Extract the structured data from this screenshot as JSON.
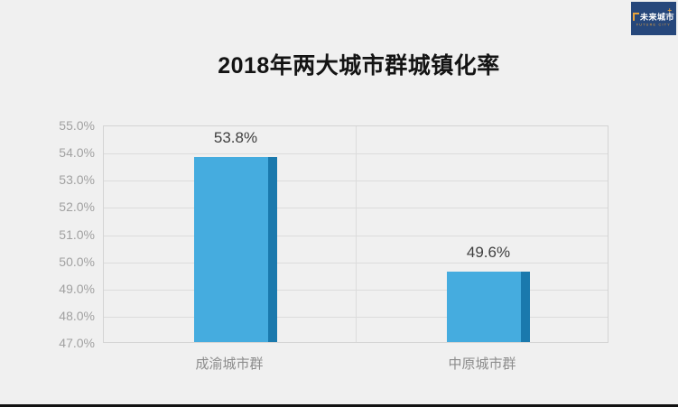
{
  "page": {
    "background": "#f0f0f0",
    "bottom_bar_color": "#121212"
  },
  "logo": {
    "text": "未来城市",
    "subtext": "FUTURE CITY",
    "plus": "+",
    "bg_color": "#26477b",
    "accent_color": "#e9a33c",
    "text_color": "#ffffff"
  },
  "chart_data": {
    "type": "bar",
    "title": "2018年两大城市群城镇化率",
    "categories": [
      "成渝城市群",
      "中原城市群"
    ],
    "values": [
      53.8,
      49.6
    ],
    "value_labels": [
      "53.8%",
      "49.6%"
    ],
    "ylim": [
      47,
      55
    ],
    "ytick_step": 1.0,
    "ytick_labels": [
      "55.0%",
      "54.0%",
      "53.0%",
      "52.0%",
      "51.0%",
      "50.0%",
      "49.0%",
      "48.0%",
      "47.0%"
    ],
    "grid": true,
    "legend": false,
    "xlabel": "",
    "ylabel": "",
    "bar_color": "#45acdf",
    "bar_edge_color": "#1a79ad",
    "gridline_color": "#dcdcdc",
    "tick_label_color": "#a1a1a1",
    "category_label_color": "#8c8c8c",
    "value_label_color": "#3f3f3f"
  }
}
